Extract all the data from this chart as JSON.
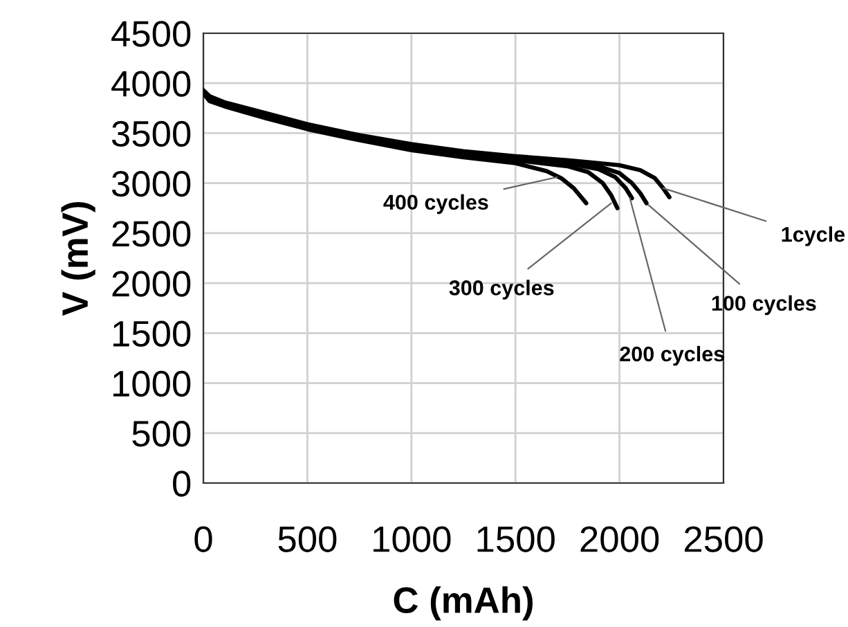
{
  "chart_data": {
    "type": "line",
    "xlabel": "C (mAh)",
    "ylabel": "V (mV)",
    "xlim": [
      0,
      2500
    ],
    "xticks": [
      0,
      500,
      1000,
      1500,
      2000,
      2500
    ],
    "ylim": [
      0,
      4500
    ],
    "yticks": [
      0,
      500,
      1000,
      1500,
      2000,
      2500,
      3000,
      3500,
      4000,
      4500
    ],
    "grid": true,
    "legend": false,
    "marker": "none",
    "line_style": "solid",
    "series": [
      {
        "color": "#000000",
        "x": [
          0,
          30,
          100,
          300,
          500,
          750,
          1000,
          1250,
          1500,
          1750,
          1900,
          2000,
          2100,
          2170,
          2210,
          2240
        ],
        "values": [
          3930,
          3870,
          3810,
          3700,
          3590,
          3480,
          3390,
          3320,
          3270,
          3230,
          3200,
          3180,
          3130,
          3050,
          2950,
          2860
        ]
      },
      {
        "color": "#000000",
        "x": [
          0,
          30,
          100,
          300,
          500,
          750,
          1000,
          1250,
          1500,
          1750,
          1900,
          2000,
          2060,
          2100,
          2130
        ],
        "values": [
          3920,
          3860,
          3800,
          3690,
          3580,
          3470,
          3380,
          3310,
          3260,
          3210,
          3170,
          3100,
          3000,
          2900,
          2800
        ]
      },
      {
        "color": "#000000",
        "x": [
          0,
          30,
          100,
          300,
          500,
          750,
          1000,
          1250,
          1500,
          1750,
          1900,
          1980,
          2030,
          2060
        ],
        "values": [
          3920,
          3860,
          3800,
          3680,
          3570,
          3460,
          3370,
          3300,
          3250,
          3200,
          3140,
          3060,
          2950,
          2850
        ]
      },
      {
        "color": "#000000",
        "x": [
          0,
          30,
          100,
          300,
          500,
          750,
          1000,
          1250,
          1500,
          1750,
          1850,
          1920,
          1960,
          1990
        ],
        "values": [
          3910,
          3850,
          3790,
          3670,
          3560,
          3450,
          3360,
          3290,
          3230,
          3170,
          3110,
          3000,
          2880,
          2750
        ]
      },
      {
        "color": "#000000",
        "x": [
          0,
          30,
          100,
          300,
          500,
          750,
          1000,
          1250,
          1500,
          1650,
          1720,
          1780,
          1840
        ],
        "values": [
          3900,
          3820,
          3770,
          3650,
          3540,
          3430,
          3330,
          3260,
          3200,
          3120,
          3050,
          2950,
          2800
        ]
      }
    ],
    "annotations": [
      {
        "text": "400 cycles",
        "x": 1700,
        "y": 3060
      },
      {
        "text": "300 cycles",
        "x": 1960,
        "y": 2800
      },
      {
        "text": "200 cycles",
        "x": 2050,
        "y": 2850
      },
      {
        "text": "100 cycles",
        "x": 2140,
        "y": 2780
      },
      {
        "text": "1cycle",
        "x": 2210,
        "y": 2950
      }
    ]
  }
}
